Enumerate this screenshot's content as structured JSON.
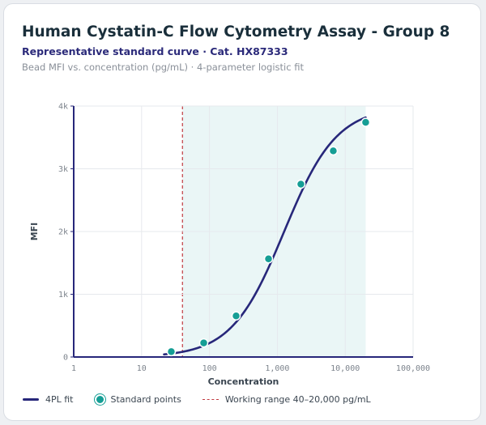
{
  "header": {
    "title": "Human Cystatin-C Flow Cytometry Assay - Group 8",
    "subtitle": "Representative standard curve · Cat. HX87333",
    "caption": "Bead MFI vs. concentration (pg/mL) · 4-parameter logistic fit"
  },
  "chart_data": {
    "type": "scatter",
    "x_scale": "log",
    "xlabel": "Concentration",
    "ylabel": "MFI",
    "xlim": [
      1,
      100000
    ],
    "ylim": [
      0,
      4000
    ],
    "x_ticks": [
      {
        "value": 1,
        "label": "1"
      },
      {
        "value": 10,
        "label": "10"
      },
      {
        "value": 100,
        "label": "100"
      },
      {
        "value": 1000,
        "label": "1,000"
      },
      {
        "value": 10000,
        "label": "10,000"
      },
      {
        "value": 100000,
        "label": "100,000"
      }
    ],
    "y_ticks": [
      {
        "value": 0,
        "label": "0"
      },
      {
        "value": 1000,
        "label": "1k"
      },
      {
        "value": 2000,
        "label": "2k"
      },
      {
        "value": 3000,
        "label": "3k"
      },
      {
        "value": 4000,
        "label": "4k"
      }
    ],
    "grid": true,
    "working_range": [
      40,
      20000
    ],
    "series": [
      {
        "name": "Standard points",
        "kind": "points",
        "x": [
          27.4,
          82.3,
          247,
          741,
          2222,
          6667,
          20000
        ],
        "y": [
          85,
          225,
          655,
          1565,
          2755,
          3285,
          3740
        ]
      },
      {
        "name": "4PL fit",
        "kind": "fit",
        "params": {
          "bottom": 0,
          "top": 3990,
          "ec50": 1255,
          "hill": 1.12
        }
      }
    ],
    "legend": {
      "position": "bottom-left",
      "fit_label": "4PL fit",
      "points_label": "Standard points",
      "range_label": "Working range 40–20,000 pg/mL"
    },
    "colors": {
      "fit": "#27277a",
      "points": "#159e95",
      "range_fill": "#eaf6f6",
      "range_line": "#c0393f",
      "grid": "#e6e9ed",
      "axis": "#27277a"
    }
  }
}
